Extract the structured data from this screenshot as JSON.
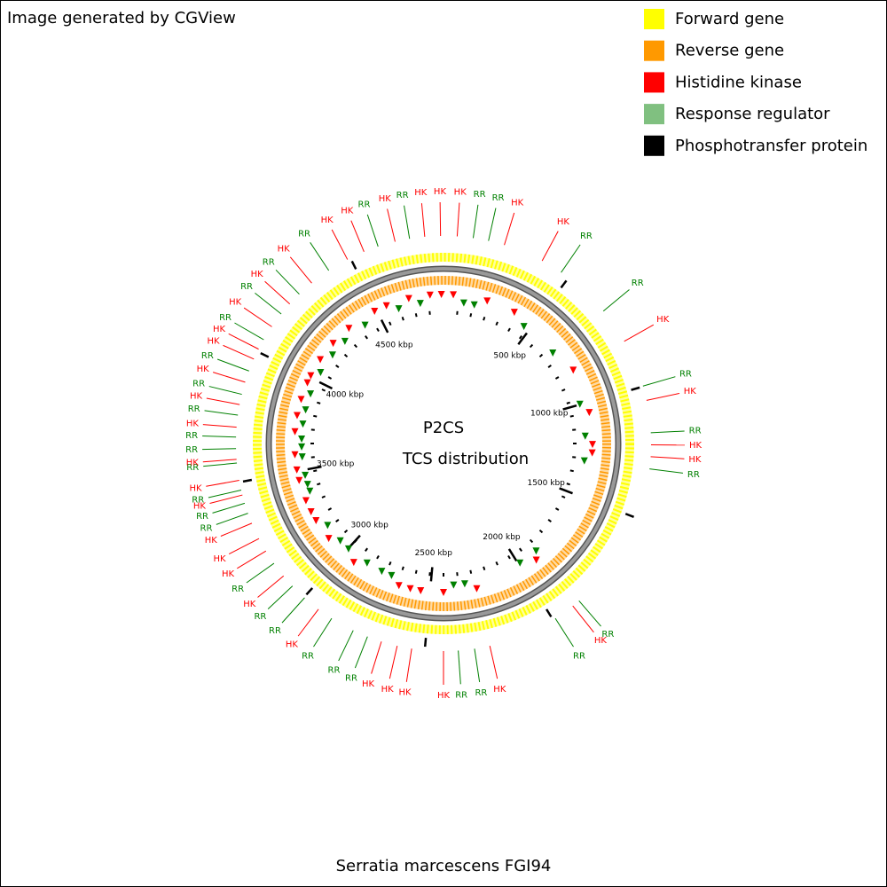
{
  "header": {
    "credit": "Image generated by CGView"
  },
  "legend": [
    {
      "label": "Forward gene",
      "color": "#ffff00"
    },
    {
      "label": "Reverse gene",
      "color": "#ff9900"
    },
    {
      "label": "Histidine kinase",
      "color": "#ff0000"
    },
    {
      "label": "Response regulator",
      "color": "#80c080"
    },
    {
      "label": "Phosphotransfer protein",
      "color": "#000000"
    }
  ],
  "center": {
    "title": "P2CS",
    "subtitle": "TCS distribution"
  },
  "footer": {
    "organism": "Serratia marcescens FGI94"
  },
  "ruler": {
    "lim": [
      0,
      4860
    ],
    "ticks": [
      {
        "value": 500,
        "label": "500 kbp"
      },
      {
        "value": 1000,
        "label": "1000 kbp"
      },
      {
        "value": 1500,
        "label": "1500 kbp"
      },
      {
        "value": 2000,
        "label": "2000 kbp"
      },
      {
        "value": 2500,
        "label": "2500 kbp"
      },
      {
        "value": 3000,
        "label": "3000 kbp"
      },
      {
        "value": 3500,
        "label": "3500 kbp"
      },
      {
        "value": 4000,
        "label": "4000 kbp"
      },
      {
        "value": 4500,
        "label": "4500 kbp"
      }
    ]
  },
  "features": {
    "colors": {
      "HK": "#ff0000",
      "RR": "#008000"
    },
    "items": [
      {
        "label": "HK",
        "position": 51
      },
      {
        "label": "RR",
        "position": 111
      },
      {
        "label": "RR",
        "position": 169
      },
      {
        "label": "HK",
        "position": 230
      },
      {
        "label": "HK",
        "position": 383
      },
      {
        "label": "RR",
        "position": 466
      },
      {
        "label": "RR",
        "position": 680
      },
      {
        "label": "HK",
        "position": 817
      },
      {
        "label": "RR",
        "position": 998
      },
      {
        "label": "HK",
        "position": 1053
      },
      {
        "label": "RR",
        "position": 1175
      },
      {
        "label": "HK",
        "position": 1220
      },
      {
        "label": "HK",
        "position": 1264
      },
      {
        "label": "RR",
        "position": 1310
      },
      {
        "label": "RR",
        "position": 1880
      },
      {
        "label": "HK",
        "position": 1910
      },
      {
        "label": "RR",
        "position": 1990
      },
      {
        "label": "HK",
        "position": 2256
      },
      {
        "label": "RR",
        "position": 2314
      },
      {
        "label": "RR",
        "position": 2375
      },
      {
        "label": "HK",
        "position": 2430
      },
      {
        "label": "HK",
        "position": 2549
      },
      {
        "label": "HK",
        "position": 2604
      },
      {
        "label": "HK",
        "position": 2665
      },
      {
        "label": "RR",
        "position": 2720
      },
      {
        "label": "RR",
        "position": 2778
      },
      {
        "label": "RR",
        "position": 2870
      },
      {
        "label": "HK",
        "position": 2930
      },
      {
        "label": "RR",
        "position": 2997
      },
      {
        "label": "RR",
        "position": 3060
      },
      {
        "label": "HK",
        "position": 3110
      },
      {
        "label": "RR",
        "position": 3169
      },
      {
        "label": "HK",
        "position": 3224
      },
      {
        "label": "HK",
        "position": 3277
      },
      {
        "label": "HK",
        "position": 3340
      },
      {
        "label": "RR",
        "position": 3380
      },
      {
        "label": "RR",
        "position": 3419
      },
      {
        "label": "HK",
        "position": 3451
      },
      {
        "label": "RR",
        "position": 3470
      },
      {
        "label": "HK",
        "position": 3507
      },
      {
        "label": "RR",
        "position": 3572
      },
      {
        "label": "HK",
        "position": 3586
      },
      {
        "label": "RR",
        "position": 3626
      },
      {
        "label": "RR",
        "position": 3669
      },
      {
        "label": "HK",
        "position": 3706
      },
      {
        "label": "RR",
        "position": 3751
      },
      {
        "label": "HK",
        "position": 3791
      },
      {
        "label": "RR",
        "position": 3830
      },
      {
        "label": "HK",
        "position": 3877
      },
      {
        "label": "RR",
        "position": 3921
      },
      {
        "label": "HK",
        "position": 3969
      },
      {
        "label": "HK",
        "position": 4010
      },
      {
        "label": "RR",
        "position": 4050
      },
      {
        "label": "HK",
        "position": 4107
      },
      {
        "label": "RR",
        "position": 4166
      },
      {
        "label": "HK",
        "position": 4215
      },
      {
        "label": "RR",
        "position": 4266
      },
      {
        "label": "HK",
        "position": 4328
      },
      {
        "label": "RR",
        "position": 4407
      },
      {
        "label": "HK",
        "position": 4488
      },
      {
        "label": "HK",
        "position": 4556
      },
      {
        "label": "RR",
        "position": 4612
      },
      {
        "label": "HK",
        "position": 4678
      },
      {
        "label": "RR",
        "position": 4733
      },
      {
        "label": "HK",
        "position": 4790
      },
      {
        "label": "HK",
        "position": 4849
      }
    ]
  }
}
